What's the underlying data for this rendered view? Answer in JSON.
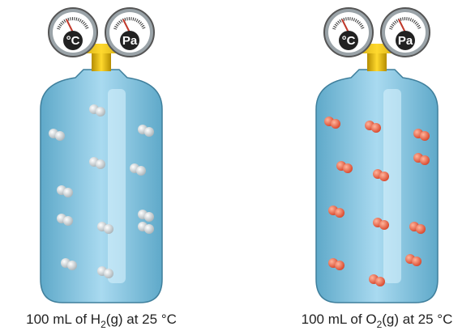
{
  "panels": [
    {
      "gauges": [
        "°C",
        "Pa"
      ],
      "caption": {
        "pre": "100 mL of H",
        "sub": "2",
        "post": "(g) at 25 °C"
      }
    },
    {
      "gauges": [
        "°C",
        "Pa"
      ],
      "caption": {
        "pre": "100 mL of O",
        "sub": "2",
        "post": "(g) at 25 °C"
      }
    }
  ]
}
